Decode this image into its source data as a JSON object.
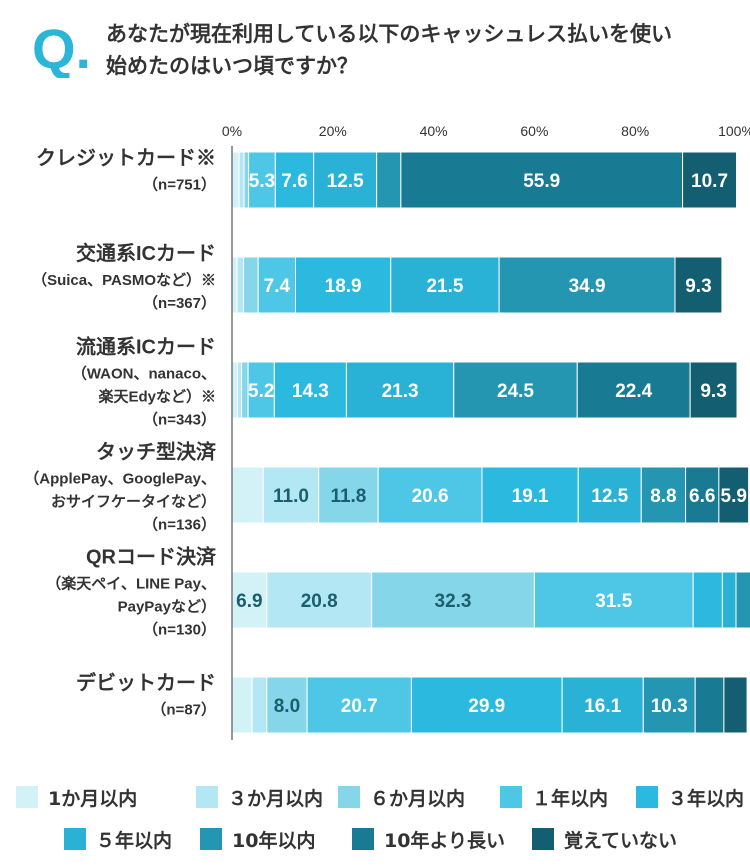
{
  "header": {
    "q_letter": "Q.",
    "question_lines": [
      "あなたが現在利用している以下のキャッシュレス払いを使い",
      "始めたのはいつ頃ですか？"
    ]
  },
  "colors": {
    "accent": "#2bb6d8",
    "segments": [
      "#d3f2f8",
      "#b3e7f3",
      "#86d6ea",
      "#4ec7e6",
      "#2cb9df",
      "#29b2d5",
      "#2596b2",
      "#197a94",
      "#135e70"
    ],
    "axis": "#777777",
    "separator": "#ffffff",
    "label_dark": "#1b5e6e",
    "label_light": "#ffffff"
  },
  "chart_data": {
    "type": "bar",
    "orientation": "horizontal",
    "stacked": true,
    "xlim": [
      0,
      100
    ],
    "x_ticks": [
      "0%",
      "20%",
      "40%",
      "60%",
      "80%",
      "100%"
    ],
    "legend_position": "bottom",
    "series_names": [
      "1か月以内",
      "３か月以内",
      "６か月以内",
      "１年以内",
      "３年以内",
      "５年以内",
      "10年以内",
      "10年より長い",
      "覚えていない"
    ],
    "categories": [
      {
        "label_lines": [
          "クレジットカード※",
          "（n=751）"
        ],
        "values": [
          1.4,
          1.0,
          0.9,
          5.3,
          7.6,
          12.5,
          4.8,
          55.9,
          10.7
        ],
        "labels": [
          "",
          "",
          "",
          "5.3",
          "7.6",
          "12.5",
          "",
          "55.9",
          "10.7"
        ]
      },
      {
        "label_lines": [
          "交通系ICカード",
          "（Suica、PASMOなど）※",
          "（n=367）"
        ],
        "values": [
          1.0,
          1.3,
          2.9,
          7.4,
          18.9,
          21.5,
          34.9,
          0.0,
          9.3
        ],
        "labels": [
          "",
          "",
          "",
          "7.4",
          "18.9",
          "21.5",
          "34.9",
          "",
          "9.3"
        ]
      },
      {
        "label_lines": [
          "流通系ICカード",
          "（WAON、nanaco、",
          "楽天Edyなど）※",
          "（n=343）"
        ],
        "values": [
          1.1,
          0.8,
          1.3,
          5.2,
          14.3,
          21.3,
          24.5,
          22.4,
          9.3
        ],
        "labels": [
          "",
          "",
          "",
          "5.2",
          "14.3",
          "21.3",
          "24.5",
          "22.4",
          "9.3"
        ]
      },
      {
        "label_lines": [
          "タッチ型決済",
          "（ApplePay、GooglePay、",
          "おサイフケータイなど）",
          "（n=136）"
        ],
        "values": [
          6.2,
          11.0,
          11.8,
          20.6,
          19.1,
          12.5,
          8.8,
          6.6,
          5.9
        ],
        "labels": [
          "",
          "11.0",
          "11.8",
          "20.6",
          "19.1",
          "12.5",
          "8.8",
          "6.6",
          "5.9"
        ]
      },
      {
        "label_lines": [
          "QRコード決済",
          "（楽天ペイ、LINE Pay、",
          "PayPayなど）",
          "（n=130）"
        ],
        "values": [
          6.9,
          20.8,
          32.3,
          31.5,
          5.8,
          2.7,
          3.0,
          1.5,
          0.0
        ],
        "labels": [
          "6.9",
          "20.8",
          "32.3",
          "31.5",
          "",
          "",
          "",
          "",
          ""
        ]
      },
      {
        "label_lines": [
          "デビットカード",
          "（n=87）"
        ],
        "values": [
          4.0,
          2.9,
          8.0,
          20.7,
          29.9,
          16.1,
          10.3,
          5.7,
          4.6
        ],
        "labels": [
          "",
          "",
          "8.0",
          "20.7",
          "29.9",
          "16.1",
          "10.3",
          "",
          ""
        ]
      }
    ]
  }
}
